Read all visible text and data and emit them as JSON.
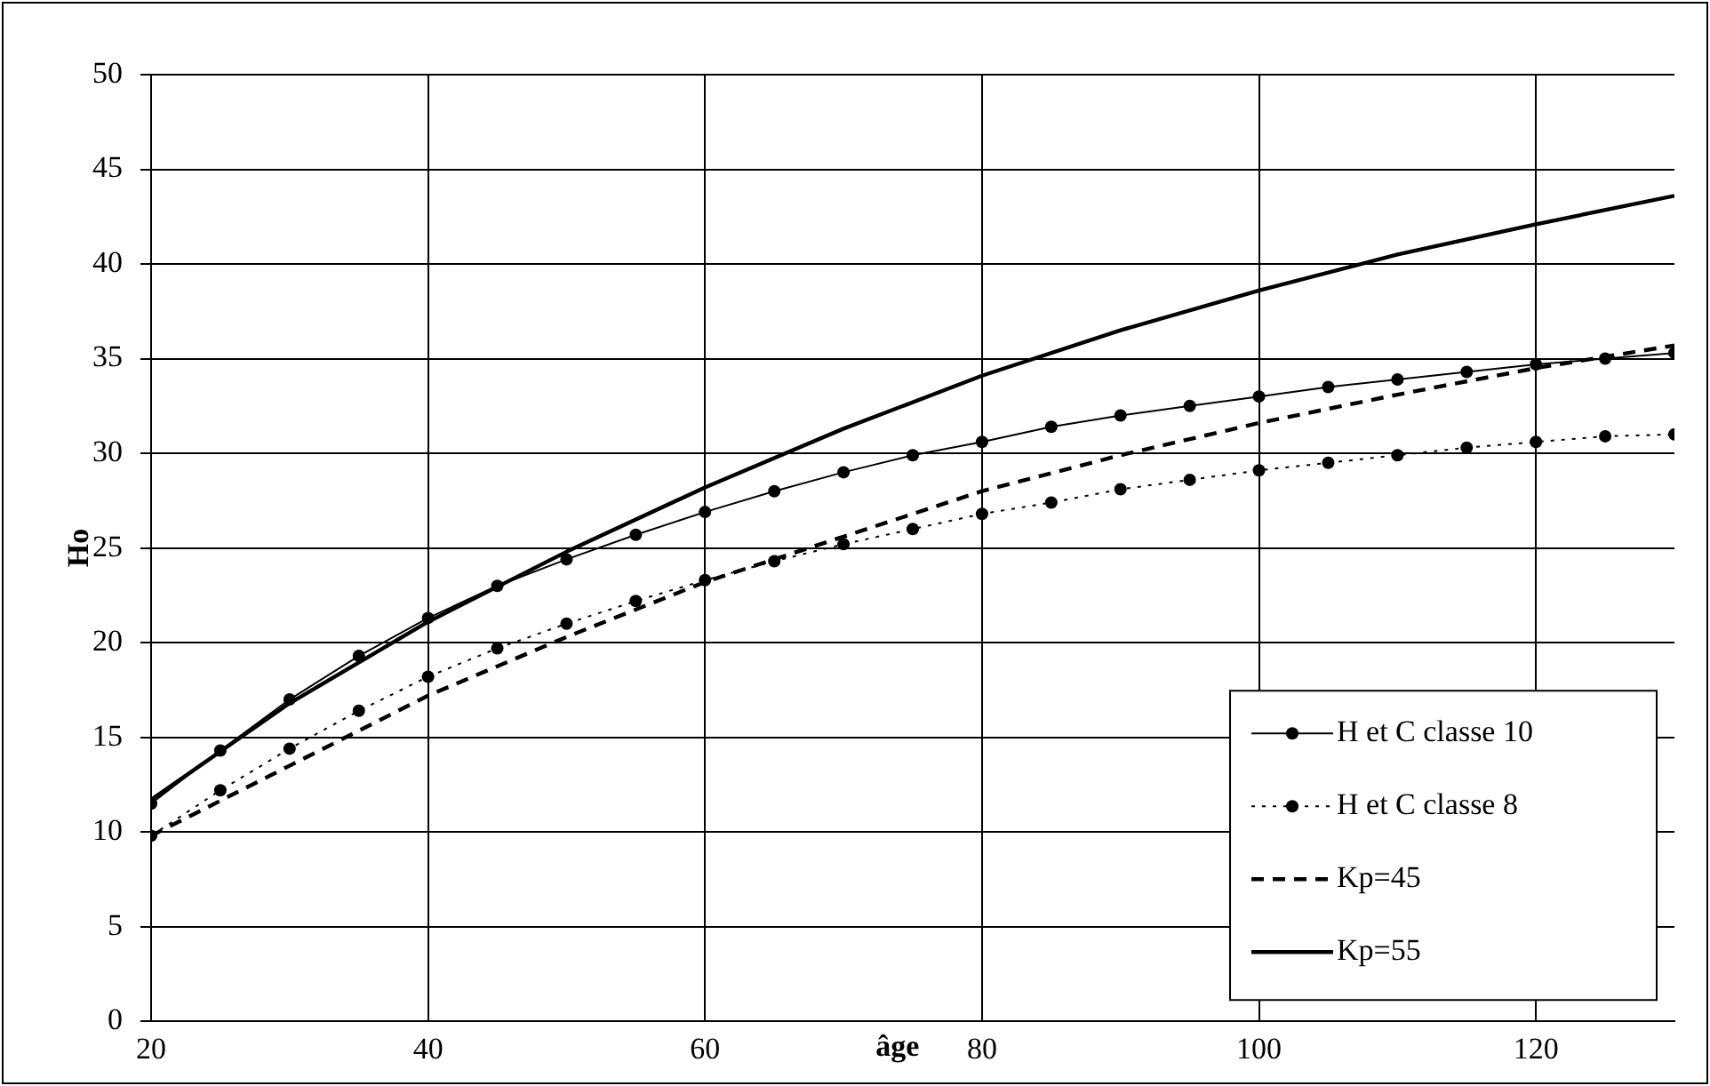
{
  "chart_data": {
    "type": "line",
    "xlabel": "âge",
    "ylabel": "Ho",
    "xlim": [
      20,
      130
    ],
    "xticks": [
      20,
      40,
      60,
      80,
      100,
      120
    ],
    "ylim": [
      0,
      50
    ],
    "yticks": [
      0,
      5,
      10,
      15,
      20,
      25,
      30,
      35,
      40,
      45,
      50
    ],
    "grid": true,
    "legend": "bottom right",
    "series": [
      {
        "name": "H et C classe 10",
        "color": "#000000",
        "marker": "circle",
        "line_style": "solid",
        "x": [
          20,
          25,
          30,
          35,
          40,
          45,
          50,
          55,
          60,
          65,
          70,
          75,
          80,
          85,
          90,
          95,
          100,
          105,
          110,
          115,
          120,
          125,
          130
        ],
        "values": [
          11.5,
          14.3,
          17.0,
          19.3,
          21.3,
          23.0,
          24.4,
          25.7,
          26.9,
          28.0,
          29.0,
          29.9,
          30.6,
          31.4,
          32.0,
          32.5,
          33.0,
          33.5,
          33.9,
          34.3,
          34.7,
          35.0,
          35.3
        ]
      },
      {
        "name": "H et C classe 8",
        "color": "#000000",
        "marker": "circle",
        "line_style": "dotted",
        "x": [
          20,
          25,
          30,
          35,
          40,
          45,
          50,
          55,
          60,
          65,
          70,
          75,
          80,
          85,
          90,
          95,
          100,
          105,
          110,
          115,
          120,
          125,
          130
        ],
        "values": [
          9.8,
          12.2,
          14.4,
          16.4,
          18.2,
          19.7,
          21.0,
          22.2,
          23.3,
          24.3,
          25.2,
          26.0,
          26.8,
          27.4,
          28.1,
          28.6,
          29.1,
          29.5,
          29.9,
          30.3,
          30.6,
          30.9,
          31.0
        ]
      },
      {
        "name": "Kp=45",
        "color": "#000000",
        "marker": "none",
        "line_style": "dashed",
        "x": [
          20,
          30,
          40,
          50,
          60,
          70,
          80,
          90,
          100,
          110,
          120,
          130
        ],
        "values": [
          9.8,
          13.5,
          17.2,
          20.3,
          23.2,
          25.6,
          28.0,
          29.9,
          31.6,
          33.1,
          34.5,
          35.7
        ]
      },
      {
        "name": "Kp=55",
        "color": "#000000",
        "marker": "none",
        "line_style": "solid",
        "x": [
          20,
          30,
          40,
          50,
          60,
          70,
          80,
          90,
          100,
          110,
          120,
          130
        ],
        "values": [
          11.7,
          16.8,
          21.1,
          24.8,
          28.2,
          31.3,
          34.1,
          36.5,
          38.6,
          40.5,
          42.1,
          43.6
        ]
      }
    ]
  }
}
